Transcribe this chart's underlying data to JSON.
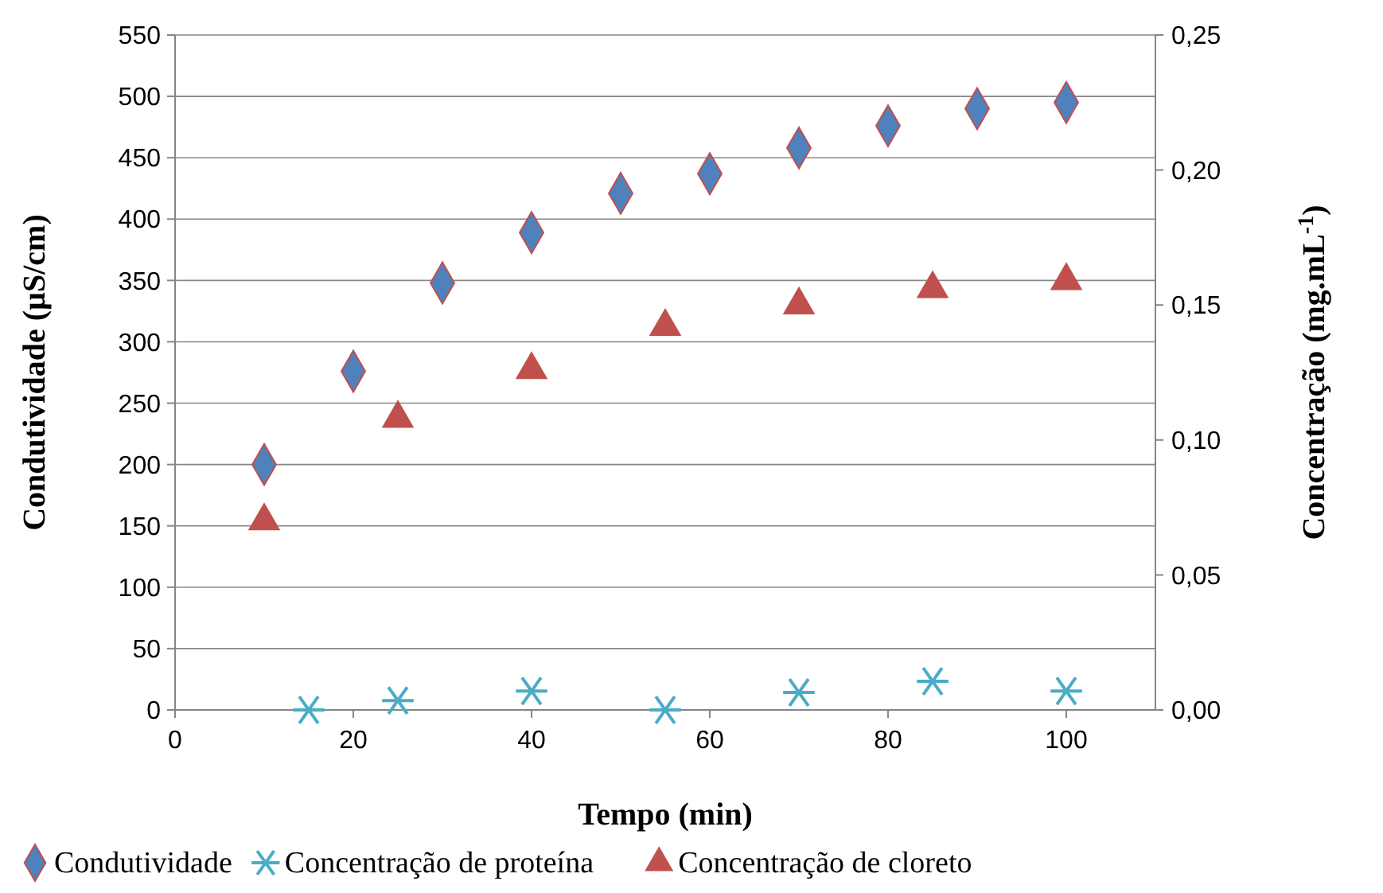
{
  "chart_data": {
    "type": "scatter",
    "xlabel": "Tempo (min)",
    "ylabel": "Condutividade (µS/cm)",
    "y2label": "Concentração (mg.mL$^{-1}$)",
    "xlim": [
      0,
      110
    ],
    "xticks": [
      0,
      20,
      40,
      60,
      80,
      100
    ],
    "ylim": [
      0,
      550
    ],
    "yticks": [
      0,
      50,
      100,
      150,
      200,
      250,
      300,
      350,
      400,
      450,
      500,
      550
    ],
    "y2lim": [
      0,
      0.25
    ],
    "y2ticks": [
      {
        "value": 0,
        "label": "0,00"
      },
      {
        "value": 0.05,
        "label": "0,05"
      },
      {
        "value": 0.1,
        "label": "0,10"
      },
      {
        "value": 0.15,
        "label": "0,15"
      },
      {
        "value": 0.2,
        "label": "0,20"
      },
      {
        "value": 0.25,
        "label": "0,25"
      }
    ],
    "grid": "y",
    "legend": "bottom",
    "series": [
      {
        "name": "Condutividade",
        "color": "#4f81bd",
        "marker": "diamond",
        "x": [
          10,
          20,
          30,
          40,
          50,
          60,
          70,
          80,
          90,
          100
        ],
        "values": [
          200,
          276,
          348,
          389,
          421,
          437,
          458,
          476,
          490,
          495
        ]
      },
      {
        "name": "Concentração de proteína",
        "color": "#4bacc6",
        "marker": "cross",
        "axis": "y2",
        "x": [
          15,
          25,
          40,
          55,
          70,
          85,
          100
        ],
        "values": [
          0.0,
          0.0035,
          0.007,
          0.0,
          0.0065,
          0.0106,
          0.007
        ]
      },
      {
        "name": "Concentração de cloreto",
        "color": "#c0504d",
        "marker": "triangle",
        "axis": "y2",
        "x": [
          10,
          25,
          40,
          55,
          70,
          85,
          100
        ],
        "values": [
          0.07,
          0.108,
          0.126,
          0.142,
          0.15,
          0.156,
          0.159
        ]
      }
    ]
  }
}
